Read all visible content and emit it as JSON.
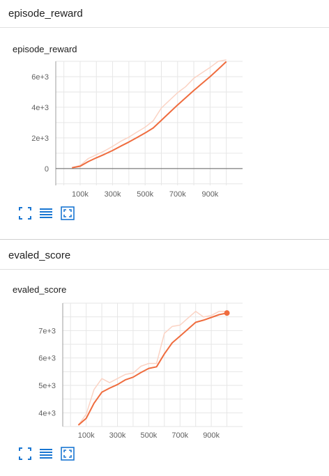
{
  "sections": [
    {
      "header": "episode_reward",
      "card_title": "episode_reward"
    },
    {
      "header": "evaled_score",
      "card_title": "evaled_score"
    }
  ],
  "colors": {
    "line": "#ef6c3e",
    "raw_line": "#fbd3c4",
    "grid": "#e6e6e6",
    "axis": "#9e9e9e",
    "zero_line": "#616161",
    "icon": "#1976d2"
  },
  "toolbar_icons": [
    "expand-icon",
    "list-icon",
    "fit-domain-icon"
  ],
  "chart_data": [
    {
      "type": "line",
      "title": "episode_reward",
      "xlabel": "",
      "ylabel": "",
      "xlim": [
        -50000,
        1100000
      ],
      "ylim": [
        -1100,
        7000
      ],
      "x_ticks": [
        100000,
        300000,
        500000,
        700000,
        900000
      ],
      "x_tick_labels": [
        "100k",
        "300k",
        "500k",
        "700k",
        "900k"
      ],
      "y_ticks": [
        0,
        2000,
        4000,
        6000
      ],
      "y_tick_labels": [
        "0",
        "2e+3",
        "4e+3",
        "6e+3"
      ],
      "grid": true,
      "series": [
        {
          "style": "raw",
          "x": [
            50000,
            100000,
            150000,
            200000,
            250000,
            300000,
            350000,
            400000,
            450000,
            500000,
            550000,
            600000,
            650000,
            700000,
            750000,
            800000,
            850000,
            900000,
            950000,
            1000000
          ],
          "y": [
            60,
            200,
            650,
            900,
            1150,
            1450,
            1780,
            2050,
            2380,
            2700,
            3120,
            3950,
            4450,
            4950,
            5350,
            5900,
            6250,
            6600,
            7000,
            7100
          ]
        },
        {
          "style": "smoothed",
          "x": [
            50000,
            100000,
            150000,
            200000,
            250000,
            300000,
            350000,
            400000,
            450000,
            500000,
            550000,
            600000,
            650000,
            700000,
            750000,
            800000,
            850000,
            900000,
            950000,
            1000000
          ],
          "y": [
            50,
            150,
            450,
            700,
            930,
            1180,
            1460,
            1730,
            2020,
            2320,
            2650,
            3150,
            3650,
            4150,
            4620,
            5100,
            5550,
            6000,
            6480,
            6980
          ]
        }
      ]
    },
    {
      "type": "line",
      "title": "evaled_score",
      "xlabel": "",
      "ylabel": "",
      "xlim": [
        -50000,
        1100000
      ],
      "ylim": [
        3500,
        8000
      ],
      "x_ticks": [
        100000,
        300000,
        500000,
        700000,
        900000
      ],
      "x_tick_labels": [
        "100k",
        "300k",
        "500k",
        "700k",
        "900k"
      ],
      "y_ticks": [
        4000,
        5000,
        6000,
        7000
      ],
      "y_tick_labels": [
        "4e+3",
        "5e+3",
        "6e+3",
        "7e+3"
      ],
      "grid": true,
      "series": [
        {
          "style": "raw",
          "x": [
            50000,
            100000,
            150000,
            200000,
            250000,
            300000,
            350000,
            400000,
            450000,
            500000,
            550000,
            600000,
            650000,
            700000,
            750000,
            800000,
            850000,
            900000,
            950000,
            1000000
          ],
          "y": [
            3550,
            3950,
            4850,
            5250,
            5100,
            5250,
            5400,
            5450,
            5700,
            5800,
            5800,
            6900,
            7150,
            7200,
            7450,
            7700,
            7500,
            7550,
            7700,
            7700
          ]
        },
        {
          "style": "smoothed",
          "x": [
            50000,
            100000,
            150000,
            200000,
            250000,
            300000,
            350000,
            400000,
            450000,
            500000,
            550000,
            600000,
            650000,
            700000,
            750000,
            800000,
            850000,
            900000,
            950000,
            1000000
          ],
          "y": [
            3550,
            3800,
            4350,
            4750,
            4900,
            5030,
            5200,
            5300,
            5470,
            5620,
            5680,
            6150,
            6550,
            6800,
            7050,
            7300,
            7380,
            7480,
            7580,
            7640
          ]
        }
      ]
    }
  ]
}
